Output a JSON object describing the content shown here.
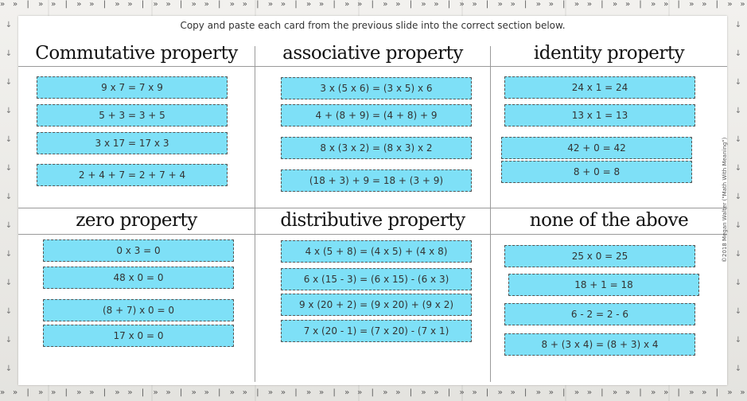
{
  "instructions": "Copy and paste each card from the previous slide into the correct section below.",
  "credit": "©2018 Megan Walter (\"Math With Meaning\")",
  "arrow_glyph": "»",
  "sections": [
    {
      "title": "Commutative property",
      "cards": [
        "9 x 7 = 7 x 9",
        "5 + 3 = 3 + 5",
        "3 x 17 = 17 x 3",
        "2 + 4 + 7 = 2 + 7 + 4"
      ]
    },
    {
      "title": "associative property",
      "cards": [
        "3 x (5 x 6) = (3 x 5) x 6",
        "4 + (8 + 9) = (4 + 8) + 9",
        "8 x (3 x 2) = (8 x 3) x 2",
        "(18 + 3) + 9 = 18 + (3 + 9)"
      ]
    },
    {
      "title": "identity property",
      "cards": [
        "24 x 1 = 24",
        "13 x 1 = 13",
        "42 + 0 = 42",
        "8 + 0 = 8"
      ]
    },
    {
      "title": "zero property",
      "cards": [
        "0 x 3 = 0",
        "48 x 0 = 0",
        "(8 + 7) x 0 = 0",
        "17 x 0 = 0"
      ]
    },
    {
      "title": "distributive property",
      "cards": [
        "4 x (5 + 8) = (4 x 5) + (4 x 8)",
        "6 x (15 - 3) = (6 x 15) - (6 x 3)",
        "9 x (20 + 2) = (9 x 20) + (9 x 2)",
        "7 x (20 - 1) = (7 x 20) - (7 x 1)"
      ]
    },
    {
      "title": "none of the above",
      "cards": [
        "25 x 0 = 25",
        "18 + 1 = 18",
        "6 - 2 = 2 - 6",
        "8 + (3 x 4) = (8 + 3) x 4"
      ]
    }
  ],
  "colors": {
    "card_fill": "#7ee0f7",
    "card_border": "#555555",
    "sheet": "#ffffff"
  }
}
